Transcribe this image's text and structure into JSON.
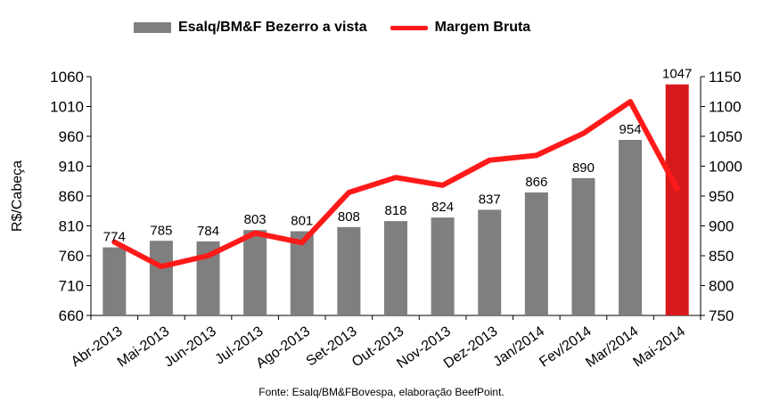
{
  "legend": {
    "bar_label": "Esalq/BM&F Bezerro a vista",
    "line_label": "Margem Bruta"
  },
  "source_note": "Fonte: Esalq/BM&FBovespa, elaboração BeefPoint.",
  "colors": {
    "bar": "#7f7f7f",
    "bar_highlight": "#d7191c",
    "line": "#ff1a1a"
  },
  "chart_data": {
    "type": "bar",
    "categories": [
      "Abr-2013",
      "Mai-2013",
      "Jun-2013",
      "Jul-2013",
      "Ago-2013",
      "Set-2013",
      "Out-2013",
      "Nov-2013",
      "Dez-2013",
      "Jan/2014",
      "Fev/2014",
      "Mar/2014",
      "Mai-2014"
    ],
    "series": [
      {
        "name": "Esalq/BM&F Bezerro a vista",
        "type": "bar",
        "axis": "left",
        "values": [
          774,
          785,
          784,
          803,
          801,
          808,
          818,
          824,
          837,
          866,
          890,
          954,
          1047
        ],
        "highlight_index": 12
      },
      {
        "name": "Margem Bruta",
        "type": "line",
        "axis": "right",
        "values": [
          873,
          832,
          850,
          888,
          872,
          956,
          981,
          968,
          1010,
          1018,
          1055,
          1108,
          962
        ]
      }
    ],
    "ylabel": "R$/Cabeça",
    "ylim": [
      660,
      1060
    ],
    "yticks": [
      660,
      710,
      760,
      810,
      860,
      910,
      960,
      1010,
      1060
    ],
    "y2lim": [
      750,
      1150
    ],
    "y2ticks": [
      750,
      800,
      850,
      900,
      950,
      1000,
      1050,
      1100,
      1150
    ],
    "grid": false,
    "legend_position": "top"
  }
}
